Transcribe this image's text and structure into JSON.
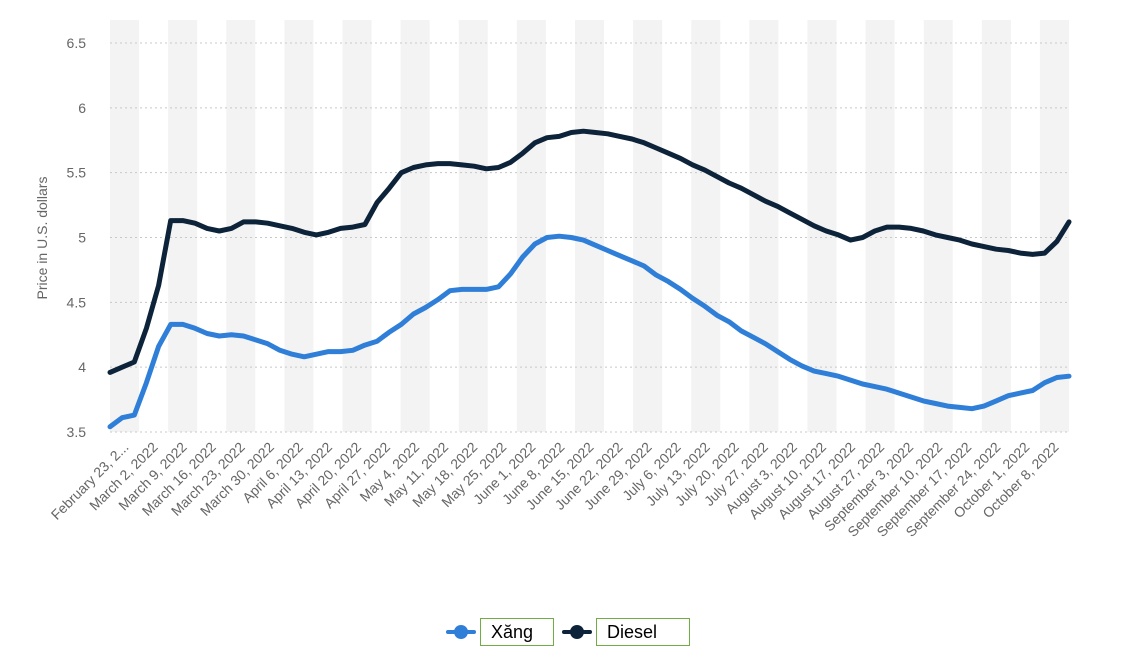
{
  "chart_data": {
    "type": "line",
    "ylabel": "Price in U.S. dollars",
    "xlabel": "",
    "ylim": [
      3.5,
      6.5
    ],
    "yticks": [
      "3.5",
      "4",
      "4.5",
      "5",
      "5.5",
      "6",
      "6.5"
    ],
    "grid": true,
    "legend_position": "bottom-center",
    "x_tick_labels": [
      "February 23, 2...",
      "March 2, 2022",
      "March 9, 2022",
      "March 16, 2022",
      "March 23, 2022",
      "March 30, 2022",
      "April 6, 2022",
      "April 13, 2022",
      "April 20, 2022",
      "April 27, 2022",
      "May 4, 2022",
      "May 11, 2022",
      "May 18, 2022",
      "May 25, 2022",
      "June 1, 2022",
      "June 8, 2022",
      "June 15, 2022",
      "June 22, 2022",
      "June 29, 2022",
      "July 6, 2022",
      "July 13, 2022",
      "July 20, 2022",
      "July 27, 2022",
      "August 3, 2022",
      "August 10, 2022",
      "August 17, 2022",
      "August 27, 2022",
      "September 3, 2022",
      "September 10, 2022",
      "September 17, 2022",
      "September 24, 2022",
      "October 1, 2022",
      "October 8, 2022"
    ],
    "series": [
      {
        "name": "Xăng",
        "color": "#2f7ed8",
        "values": [
          3.54,
          3.61,
          3.63,
          3.88,
          4.16,
          4.33,
          4.33,
          4.3,
          4.26,
          4.24,
          4.25,
          4.24,
          4.21,
          4.18,
          4.13,
          4.1,
          4.08,
          4.1,
          4.12,
          4.12,
          4.13,
          4.17,
          4.2,
          4.27,
          4.33,
          4.41,
          4.46,
          4.52,
          4.59,
          4.6,
          4.6,
          4.6,
          4.62,
          4.72,
          4.85,
          4.95,
          5.0,
          5.01,
          5.0,
          4.98,
          4.94,
          4.9,
          4.86,
          4.82,
          4.78,
          4.71,
          4.66,
          4.6,
          4.53,
          4.47,
          4.4,
          4.35,
          4.28,
          4.23,
          4.18,
          4.12,
          4.06,
          4.01,
          3.97,
          3.95,
          3.93,
          3.9,
          3.87,
          3.85,
          3.83,
          3.8,
          3.77,
          3.74,
          3.72,
          3.7,
          3.69,
          3.68,
          3.7,
          3.74,
          3.78,
          3.8,
          3.82,
          3.88,
          3.92,
          3.93
        ]
      },
      {
        "name": "Diesel",
        "color": "#0d233a",
        "values": [
          3.96,
          4.0,
          4.04,
          4.3,
          4.63,
          5.13,
          5.13,
          5.11,
          5.07,
          5.05,
          5.07,
          5.12,
          5.12,
          5.11,
          5.09,
          5.07,
          5.04,
          5.02,
          5.04,
          5.07,
          5.08,
          5.1,
          5.27,
          5.38,
          5.5,
          5.54,
          5.56,
          5.57,
          5.57,
          5.56,
          5.55,
          5.53,
          5.54,
          5.58,
          5.65,
          5.73,
          5.77,
          5.78,
          5.81,
          5.82,
          5.81,
          5.8,
          5.78,
          5.76,
          5.73,
          5.69,
          5.65,
          5.61,
          5.56,
          5.52,
          5.47,
          5.42,
          5.38,
          5.33,
          5.28,
          5.24,
          5.19,
          5.14,
          5.09,
          5.05,
          5.02,
          4.98,
          5.0,
          5.05,
          5.08,
          5.08,
          5.07,
          5.05,
          5.02,
          5.0,
          4.98,
          4.95,
          4.93,
          4.91,
          4.9,
          4.88,
          4.87,
          4.88,
          4.97,
          5.12
        ]
      }
    ]
  }
}
